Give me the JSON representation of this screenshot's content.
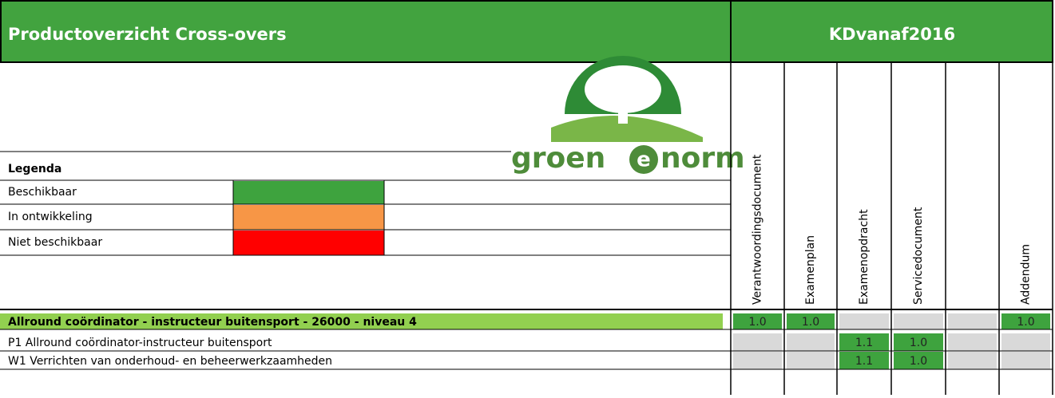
{
  "header": {
    "title": "Productoverzicht Cross-overs",
    "right_title": "KDvanaf2016"
  },
  "logo": [
    "groen",
    "e",
    "norm"
  ],
  "legend": {
    "title": "Legenda",
    "items": [
      {
        "label": "Beschikbaar",
        "color": "#3ea33e"
      },
      {
        "label": "In ontwikkeling",
        "color": "#f79646"
      },
      {
        "label": "Niet beschikbaar",
        "color": "#ff0000"
      }
    ]
  },
  "columns": [
    "Verantwoordingsdocument",
    "Examenplan",
    "Examenopdracht",
    "Servicedocument",
    null,
    "Addendum"
  ],
  "rows": [
    {
      "label": "Allround coördinator - instructeur buitensport - 26000 - niveau 4",
      "level": "main",
      "cells": [
        "1.0",
        "1.0",
        null,
        null,
        null,
        "1.0"
      ]
    },
    {
      "label": "P1 Allround coördinator-instructeur buitensport",
      "level": "sub",
      "cells": [
        null,
        null,
        "1.1",
        "1.0",
        null,
        null
      ]
    },
    {
      "label": "W1 Verrichten van onderhoud- en beheerwerkzaamheden",
      "level": "sub",
      "cells": [
        null,
        null,
        "1.1",
        "1.0",
        null,
        null
      ]
    }
  ]
}
